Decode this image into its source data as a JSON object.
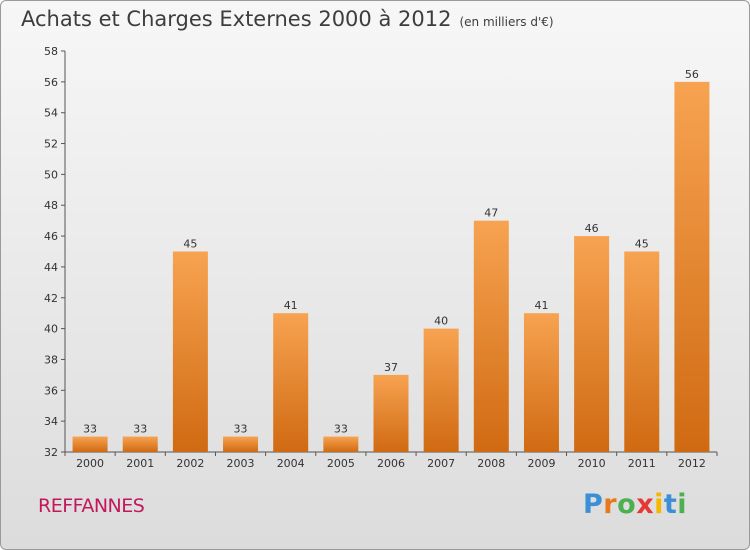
{
  "title": "Achats et Charges Externes 2000 à 2012",
  "subtitle": "(en milliers d'€)",
  "commune": "REFFANNES",
  "logo": {
    "letters": [
      "P",
      "r",
      "o",
      "x",
      "i",
      "t",
      "i"
    ],
    "colors": [
      "#3a8fd6",
      "#e8781a",
      "#4caf50",
      "#e53935",
      "#f5b800",
      "#3a8fd6",
      "#4caf50"
    ]
  },
  "colors": {
    "bar_light": "#f7a351",
    "bar_dark": "#d06a12",
    "title": "#3d3d3d",
    "commune": "#c2185b"
  },
  "chart_data": {
    "type": "bar",
    "categories": [
      "2000",
      "2001",
      "2002",
      "2003",
      "2004",
      "2005",
      "2006",
      "2007",
      "2008",
      "2009",
      "2010",
      "2011",
      "2012"
    ],
    "values": [
      33,
      33,
      45,
      33,
      41,
      33,
      37,
      40,
      47,
      41,
      46,
      45,
      56
    ],
    "data_labels": [
      "33",
      "33",
      "45",
      "33",
      "41",
      "33",
      "37",
      "40",
      "47",
      "41",
      "46",
      "45",
      "56"
    ],
    "yticks": [
      "32",
      "34",
      "36",
      "38",
      "40",
      "42",
      "44",
      "46",
      "48",
      "50",
      "52",
      "54",
      "56",
      "58"
    ],
    "ylim": [
      32,
      58
    ],
    "xlabel": "",
    "ylabel": "",
    "grid": false,
    "legend": "none"
  }
}
